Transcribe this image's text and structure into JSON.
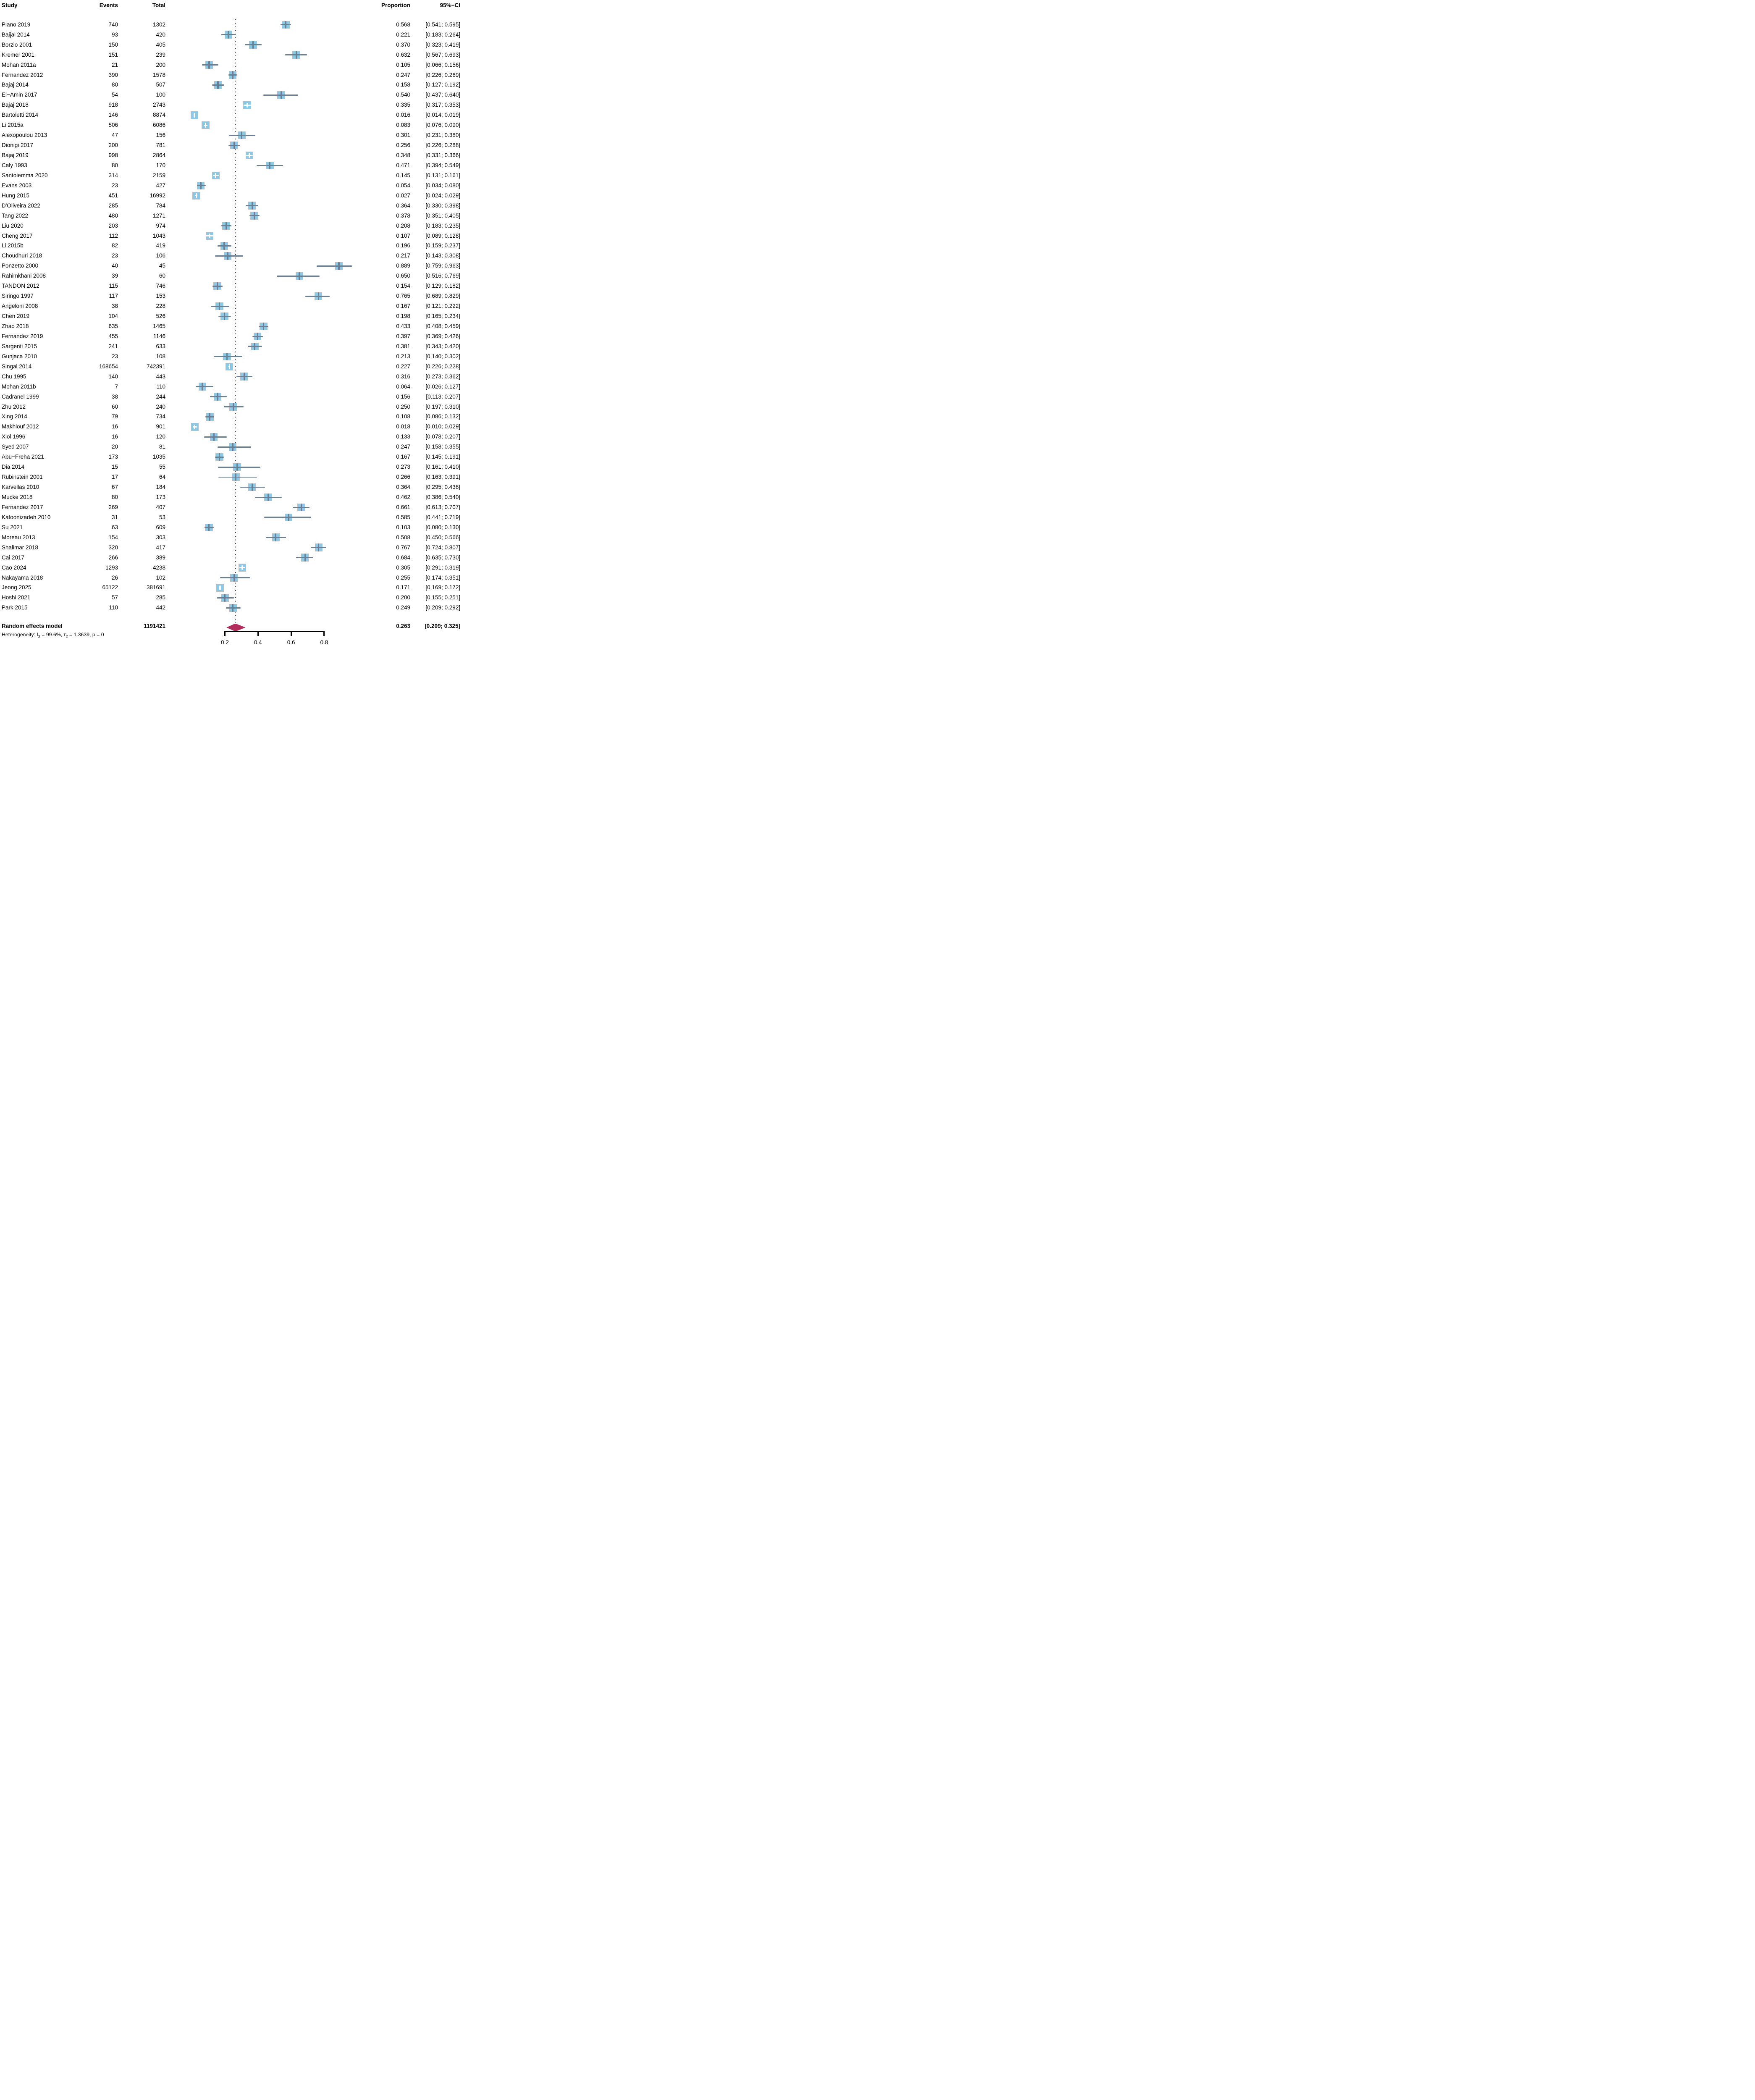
{
  "header": {
    "study": "Study",
    "events": "Events",
    "total": "Total",
    "proportion": "Proportion",
    "ci": "95%−CI"
  },
  "summary_row": {
    "label": "Random effects model",
    "total": "1191421",
    "proportion": "0.263",
    "ci_low": "0.209",
    "ci_high": "0.325"
  },
  "heterogeneity": {
    "prefix": "Heterogeneity: I",
    "sub1": "2",
    "mid": " = 99.6%, τ",
    "sub2": "2",
    "suffix": " = 1.3639, p = 0"
  },
  "colors": {
    "square_fill": "#8cc9e7",
    "square_border": "#bfbfbf",
    "ci_line": "#6b8095",
    "white_cross": "#ffffff",
    "diamond": "#b22d5b",
    "dotted_line": "#141414",
    "axis": "#000000"
  },
  "chart_data": {
    "type": "forest",
    "title": "",
    "xlabel": "",
    "x_ticks": [
      {
        "value": 0.2,
        "label": "0.2"
      },
      {
        "value": 0.4,
        "label": "0.4"
      },
      {
        "value": 0.6,
        "label": "0.6"
      },
      {
        "value": 0.8,
        "label": "0.8"
      }
    ],
    "axis_range": [
      0.2,
      0.8
    ],
    "reference_line": 0.263,
    "legend_position": "none",
    "grid": false,
    "studies": [
      {
        "name": "Piano 2019",
        "events": "740",
        "total": "1302",
        "prop": "0.568",
        "lo": "0.541",
        "hi": "0.595"
      },
      {
        "name": "Baijal 2014",
        "events": "93",
        "total": "420",
        "prop": "0.221",
        "lo": "0.183",
        "hi": "0.264"
      },
      {
        "name": "Borzio 2001",
        "events": "150",
        "total": "405",
        "prop": "0.370",
        "lo": "0.323",
        "hi": "0.419"
      },
      {
        "name": "Kremer 2001",
        "events": "151",
        "total": "239",
        "prop": "0.632",
        "lo": "0.567",
        "hi": "0.693"
      },
      {
        "name": "Mohan 2011a",
        "events": "21",
        "total": "200",
        "prop": "0.105",
        "lo": "0.066",
        "hi": "0.156"
      },
      {
        "name": "Fernandez 2012",
        "events": "390",
        "total": "1578",
        "prop": "0.247",
        "lo": "0.226",
        "hi": "0.269"
      },
      {
        "name": "Bajaj 2014",
        "events": "80",
        "total": "507",
        "prop": "0.158",
        "lo": "0.127",
        "hi": "0.192"
      },
      {
        "name": "El−Amin 2017",
        "events": "54",
        "total": "100",
        "prop": "0.540",
        "lo": "0.437",
        "hi": "0.640"
      },
      {
        "name": "Bajaj 2018",
        "events": "918",
        "total": "2743",
        "prop": "0.335",
        "lo": "0.317",
        "hi": "0.353"
      },
      {
        "name": "Bartoletti 2014",
        "events": "146",
        "total": "8874",
        "prop": "0.016",
        "lo": "0.014",
        "hi": "0.019"
      },
      {
        "name": "Li 2015a",
        "events": "506",
        "total": "6086",
        "prop": "0.083",
        "lo": "0.076",
        "hi": "0.090"
      },
      {
        "name": "Alexopoulou 2013",
        "events": "47",
        "total": "156",
        "prop": "0.301",
        "lo": "0.231",
        "hi": "0.380"
      },
      {
        "name": "Dionigi 2017",
        "events": "200",
        "total": "781",
        "prop": "0.256",
        "lo": "0.226",
        "hi": "0.288"
      },
      {
        "name": "Bajaj 2019",
        "events": "998",
        "total": "2864",
        "prop": "0.348",
        "lo": "0.331",
        "hi": "0.366"
      },
      {
        "name": "Caly 1993",
        "events": "80",
        "total": "170",
        "prop": "0.471",
        "lo": "0.394",
        "hi": "0.549"
      },
      {
        "name": "Santoiemma 2020",
        "events": "314",
        "total": "2159",
        "prop": "0.145",
        "lo": "0.131",
        "hi": "0.161"
      },
      {
        "name": "Evans 2003",
        "events": "23",
        "total": "427",
        "prop": "0.054",
        "lo": "0.034",
        "hi": "0.080"
      },
      {
        "name": "Hung 2015",
        "events": "451",
        "total": "16992",
        "prop": "0.027",
        "lo": "0.024",
        "hi": "0.029"
      },
      {
        "name": "D'Oliveira 2022",
        "events": "285",
        "total": "784",
        "prop": "0.364",
        "lo": "0.330",
        "hi": "0.398"
      },
      {
        "name": "Tang 2022",
        "events": "480",
        "total": "1271",
        "prop": "0.378",
        "lo": "0.351",
        "hi": "0.405"
      },
      {
        "name": "Liu 2020",
        "events": "203",
        "total": "974",
        "prop": "0.208",
        "lo": "0.183",
        "hi": "0.235"
      },
      {
        "name": "Cheng 2017",
        "events": "112",
        "total": "1043",
        "prop": "0.107",
        "lo": "0.089",
        "hi": "0.128"
      },
      {
        "name": "Li 2015b",
        "events": "82",
        "total": "419",
        "prop": "0.196",
        "lo": "0.159",
        "hi": "0.237"
      },
      {
        "name": "Choudhuri 2018",
        "events": "23",
        "total": "106",
        "prop": "0.217",
        "lo": "0.143",
        "hi": "0.308"
      },
      {
        "name": "Ponzetto 2000",
        "events": "40",
        "total": "45",
        "prop": "0.889",
        "lo": "0.759",
        "hi": "0.963"
      },
      {
        "name": "Rahimkhani 2008",
        "events": "39",
        "total": "60",
        "prop": "0.650",
        "lo": "0.516",
        "hi": "0.769"
      },
      {
        "name": "TANDON 2012",
        "events": "115",
        "total": "746",
        "prop": "0.154",
        "lo": "0.129",
        "hi": "0.182"
      },
      {
        "name": "Siringo 1997",
        "events": "117",
        "total": "153",
        "prop": "0.765",
        "lo": "0.689",
        "hi": "0.829"
      },
      {
        "name": "Angeloni 2008",
        "events": "38",
        "total": "228",
        "prop": "0.167",
        "lo": "0.121",
        "hi": "0.222"
      },
      {
        "name": "Chen 2019",
        "events": "104",
        "total": "526",
        "prop": "0.198",
        "lo": "0.165",
        "hi": "0.234"
      },
      {
        "name": "Zhao 2018",
        "events": "635",
        "total": "1465",
        "prop": "0.433",
        "lo": "0.408",
        "hi": "0.459"
      },
      {
        "name": "Fernandez 2019",
        "events": "455",
        "total": "1146",
        "prop": "0.397",
        "lo": "0.369",
        "hi": "0.426"
      },
      {
        "name": "Sargenti 2015",
        "events": "241",
        "total": "633",
        "prop": "0.381",
        "lo": "0.343",
        "hi": "0.420"
      },
      {
        "name": "Gunjaca 2010",
        "events": "23",
        "total": "108",
        "prop": "0.213",
        "lo": "0.140",
        "hi": "0.302"
      },
      {
        "name": "Singal 2014",
        "events": "168654",
        "total": "742391",
        "prop": "0.227",
        "lo": "0.226",
        "hi": "0.228"
      },
      {
        "name": "Chu 1995",
        "events": "140",
        "total": "443",
        "prop": "0.316",
        "lo": "0.273",
        "hi": "0.362"
      },
      {
        "name": "Mohan 2011b",
        "events": "7",
        "total": "110",
        "prop": "0.064",
        "lo": "0.026",
        "hi": "0.127"
      },
      {
        "name": "Cadranel 1999",
        "events": "38",
        "total": "244",
        "prop": "0.156",
        "lo": "0.113",
        "hi": "0.207"
      },
      {
        "name": "Zhu 2012",
        "events": "60",
        "total": "240",
        "prop": "0.250",
        "lo": "0.197",
        "hi": "0.310"
      },
      {
        "name": "Xing 2014",
        "events": "79",
        "total": "734",
        "prop": "0.108",
        "lo": "0.086",
        "hi": "0.132"
      },
      {
        "name": "Makhlouf 2012",
        "events": "16",
        "total": "901",
        "prop": "0.018",
        "lo": "0.010",
        "hi": "0.029"
      },
      {
        "name": "Xiol 1996",
        "events": "16",
        "total": "120",
        "prop": "0.133",
        "lo": "0.078",
        "hi": "0.207"
      },
      {
        "name": "Syed 2007",
        "events": "20",
        "total": "81",
        "prop": "0.247",
        "lo": "0.158",
        "hi": "0.355"
      },
      {
        "name": "Abu−Freha 2021",
        "events": "173",
        "total": "1035",
        "prop": "0.167",
        "lo": "0.145",
        "hi": "0.191"
      },
      {
        "name": "Dia 2014",
        "events": "15",
        "total": "55",
        "prop": "0.273",
        "lo": "0.161",
        "hi": "0.410"
      },
      {
        "name": "Rubinstein 2001",
        "events": "17",
        "total": "64",
        "prop": "0.266",
        "lo": "0.163",
        "hi": "0.391"
      },
      {
        "name": "Karvellas 2010",
        "events": "67",
        "total": "184",
        "prop": "0.364",
        "lo": "0.295",
        "hi": "0.438"
      },
      {
        "name": "Mucke 2018",
        "events": "80",
        "total": "173",
        "prop": "0.462",
        "lo": "0.386",
        "hi": "0.540"
      },
      {
        "name": "Fernandez 2017",
        "events": "269",
        "total": "407",
        "prop": "0.661",
        "lo": "0.613",
        "hi": "0.707"
      },
      {
        "name": "Katoonizadeh 2010",
        "events": "31",
        "total": "53",
        "prop": "0.585",
        "lo": "0.441",
        "hi": "0.719"
      },
      {
        "name": "Su 2021",
        "events": "63",
        "total": "609",
        "prop": "0.103",
        "lo": "0.080",
        "hi": "0.130"
      },
      {
        "name": "Moreau 2013",
        "events": "154",
        "total": "303",
        "prop": "0.508",
        "lo": "0.450",
        "hi": "0.566"
      },
      {
        "name": "Shalimar 2018",
        "events": "320",
        "total": "417",
        "prop": "0.767",
        "lo": "0.724",
        "hi": "0.807"
      },
      {
        "name": "Cai 2017",
        "events": "266",
        "total": "389",
        "prop": "0.684",
        "lo": "0.635",
        "hi": "0.730"
      },
      {
        "name": "Cao 2024",
        "events": "1293",
        "total": "4238",
        "prop": "0.305",
        "lo": "0.291",
        "hi": "0.319"
      },
      {
        "name": "Nakayama 2018",
        "events": "26",
        "total": "102",
        "prop": "0.255",
        "lo": "0.174",
        "hi": "0.351"
      },
      {
        "name": "Jeong 2025",
        "events": "65122",
        "total": "381691",
        "prop": "0.171",
        "lo": "0.169",
        "hi": "0.172"
      },
      {
        "name": "Hoshi 2021",
        "events": "57",
        "total": "285",
        "prop": "0.200",
        "lo": "0.155",
        "hi": "0.251"
      },
      {
        "name": "Park 2015",
        "events": "110",
        "total": "442",
        "prop": "0.249",
        "lo": "0.209",
        "hi": "0.292"
      }
    ],
    "summary": {
      "label": "Random effects model",
      "total": "1191421",
      "proportion": 0.263,
      "ci_low": 0.209,
      "ci_high": 0.325,
      "heterogeneity_I2": "99.6%",
      "tau2": "1.3639",
      "p": "0"
    }
  }
}
